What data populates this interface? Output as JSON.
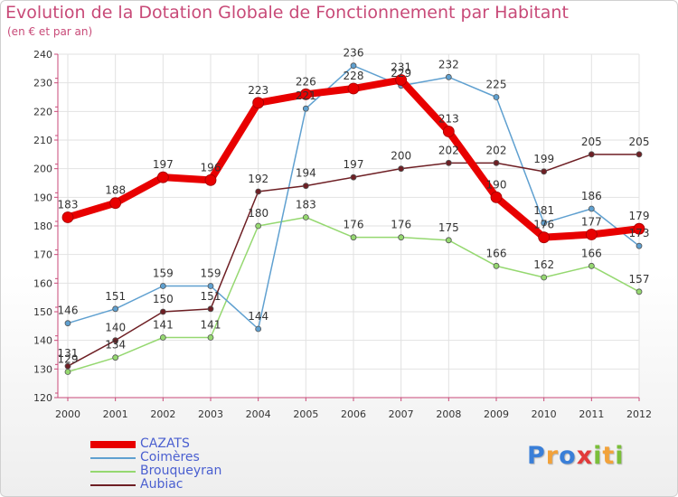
{
  "header": {
    "title": "Evolution de la Dotation Globale de Fonctionnement par Habitant",
    "subtitle": "(en € et par an)"
  },
  "brand": {
    "letters": [
      "P",
      "r",
      "o",
      "x",
      "i",
      "t",
      "i"
    ],
    "colors": [
      "#3a7fd8",
      "#f2a23a",
      "#3a7fd8",
      "#e23a3a",
      "#7bbf3a",
      "#f2a23a",
      "#7bbf3a"
    ]
  },
  "chart_data": {
    "type": "line",
    "title": "Evolution de la Dotation Globale de Fonctionnement par Habitant",
    "subtitle": "(en € et par an)",
    "x": [
      "2000",
      "2001",
      "2002",
      "2003",
      "2004",
      "2005",
      "2006",
      "2007",
      "2008",
      "2009",
      "2010",
      "2011",
      "2012"
    ],
    "ylim": [
      120,
      240
    ],
    "yticks": [
      120,
      130,
      140,
      150,
      160,
      170,
      180,
      190,
      200,
      210,
      220,
      230,
      240
    ],
    "grid": true,
    "legend_position": "bottom-left",
    "series": [
      {
        "name": "CAZATS",
        "color": "#e80000",
        "values": [
          183,
          188,
          197,
          196,
          223,
          226,
          228,
          231,
          213,
          190,
          176,
          177,
          179
        ]
      },
      {
        "name": "Coimères",
        "color": "#5fa0d0",
        "values": [
          146,
          151,
          159,
          159,
          144,
          221,
          236,
          229,
          232,
          225,
          181,
          186,
          173
        ]
      },
      {
        "name": "Brouqueyran",
        "color": "#95d870",
        "values": [
          129,
          134,
          141,
          141,
          180,
          183,
          176,
          176,
          175,
          166,
          162,
          166,
          157
        ]
      },
      {
        "name": "Aubiac",
        "color": "#6e1f24",
        "values": [
          131,
          140,
          150,
          151,
          192,
          194,
          197,
          200,
          202,
          202,
          199,
          205,
          205
        ]
      }
    ]
  }
}
